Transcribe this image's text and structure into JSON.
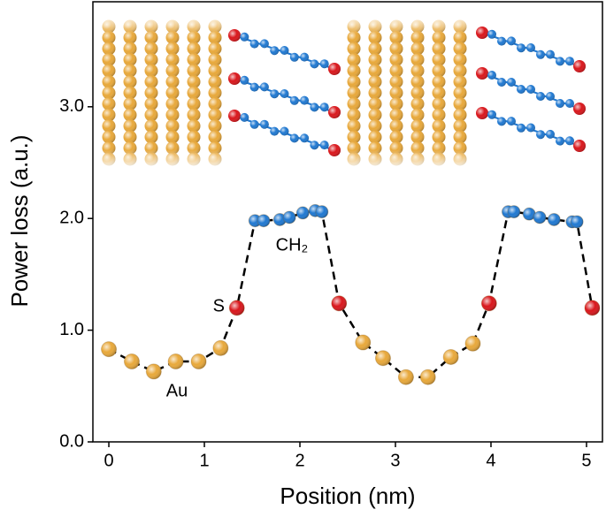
{
  "chart_data": {
    "type": "scatter",
    "x_label": "Position (nm)",
    "y_label": "Power loss (a.u.)",
    "xlim": [
      -0.167,
      5.167
    ],
    "ylim": [
      0,
      3.94
    ],
    "xticks": [
      0,
      1,
      2,
      3,
      4,
      5
    ],
    "yticks": [
      {
        "value": 0,
        "label": "0.0"
      },
      {
        "value": 1,
        "label": "1.0"
      },
      {
        "value": 2,
        "label": "2.0"
      },
      {
        "value": 3,
        "label": "3.0"
      }
    ],
    "line_style": "dashed",
    "series": [
      {
        "name": "Au",
        "color": "#e8a83a",
        "x": [
          0,
          0.24,
          0.47,
          0.7,
          0.94,
          1.17
        ],
        "values": [
          0.83,
          0.72,
          0.63,
          0.72,
          0.72,
          0.84
        ]
      },
      {
        "name": "S",
        "color": "#d9161b",
        "x": [
          1.34
        ],
        "values": [
          1.2
        ]
      },
      {
        "name": "CH₂",
        "color": "#1f78d1",
        "x": [
          1.53,
          1.62,
          1.79,
          1.89,
          2.03,
          2.16,
          2.23
        ],
        "values": [
          1.98,
          1.98,
          1.99,
          2.01,
          2.05,
          2.07,
          2.06
        ]
      },
      {
        "color": "#d9161b",
        "x": [
          2.41
        ],
        "values": [
          1.24
        ]
      },
      {
        "color": "#e8a83a",
        "x": [
          2.66,
          2.87,
          3.11,
          3.34,
          3.58,
          3.81
        ],
        "values": [
          0.89,
          0.75,
          0.58,
          0.58,
          0.76,
          0.88
        ]
      },
      {
        "color": "#d9161b",
        "x": [
          3.98
        ],
        "values": [
          1.24
        ]
      },
      {
        "color": "#1f78d1",
        "x": [
          4.18,
          4.24,
          4.4,
          4.51,
          4.66,
          4.85,
          4.9
        ],
        "values": [
          2.06,
          2.06,
          2.04,
          2.01,
          1.99,
          1.97,
          1.97
        ]
      },
      {
        "color": "#d9161b",
        "x": [
          5.06
        ],
        "values": [
          1.2
        ]
      }
    ]
  }
}
